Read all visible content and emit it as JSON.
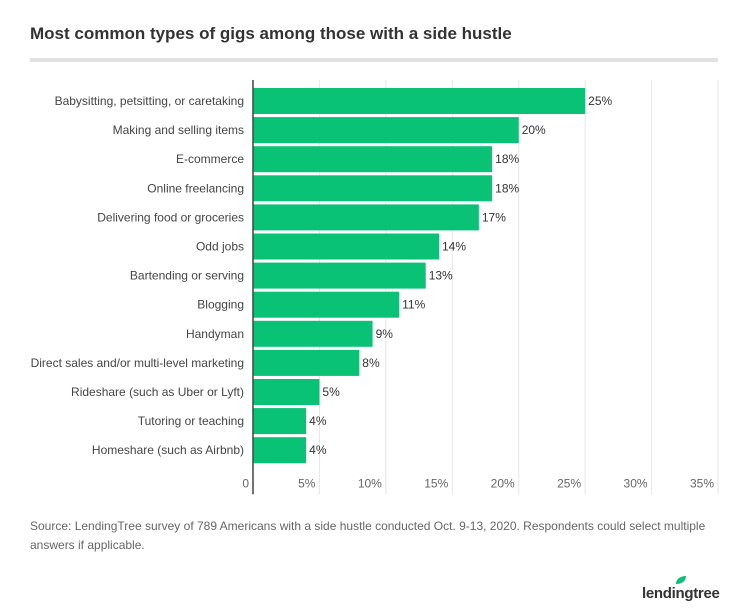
{
  "chart_data": {
    "type": "bar",
    "orientation": "horizontal",
    "title": "Most common types of gigs among those with a side hustle",
    "categories": [
      "Babysitting, petsitting, or caretaking",
      "Making and selling items",
      "E-commerce",
      "Online freelancing",
      "Delivering food or groceries",
      "Odd jobs",
      "Bartending or serving",
      "Blogging",
      "Handyman",
      "Direct sales and/or multi-level marketing",
      "Rideshare (such as Uber or Lyft)",
      "Tutoring or teaching",
      "Homeshare (such as Airbnb)"
    ],
    "values": [
      25,
      20,
      18,
      18,
      17,
      14,
      13,
      11,
      9,
      8,
      5,
      4,
      4
    ],
    "data_labels": [
      "25%",
      "20%",
      "18%",
      "18%",
      "17%",
      "14%",
      "13%",
      "11%",
      "9%",
      "8%",
      "5%",
      "4%",
      "4%"
    ],
    "xlim": [
      0,
      35
    ],
    "xticks": [
      0,
      5,
      10,
      15,
      20,
      25,
      30,
      35
    ],
    "xtick_labels": [
      "0",
      "5%",
      "10%",
      "15%",
      "20%",
      "25%",
      "30%",
      "35%"
    ],
    "grid": true,
    "bar_color": "#0ac275"
  },
  "source": "Source: LendingTree survey of 789 Americans with a side hustle conducted Oct. 9-13, 2020. Respondents could select multiple answers if applicable.",
  "logo": {
    "text": "lendingtree",
    "leaf_color": "#0ac275"
  }
}
